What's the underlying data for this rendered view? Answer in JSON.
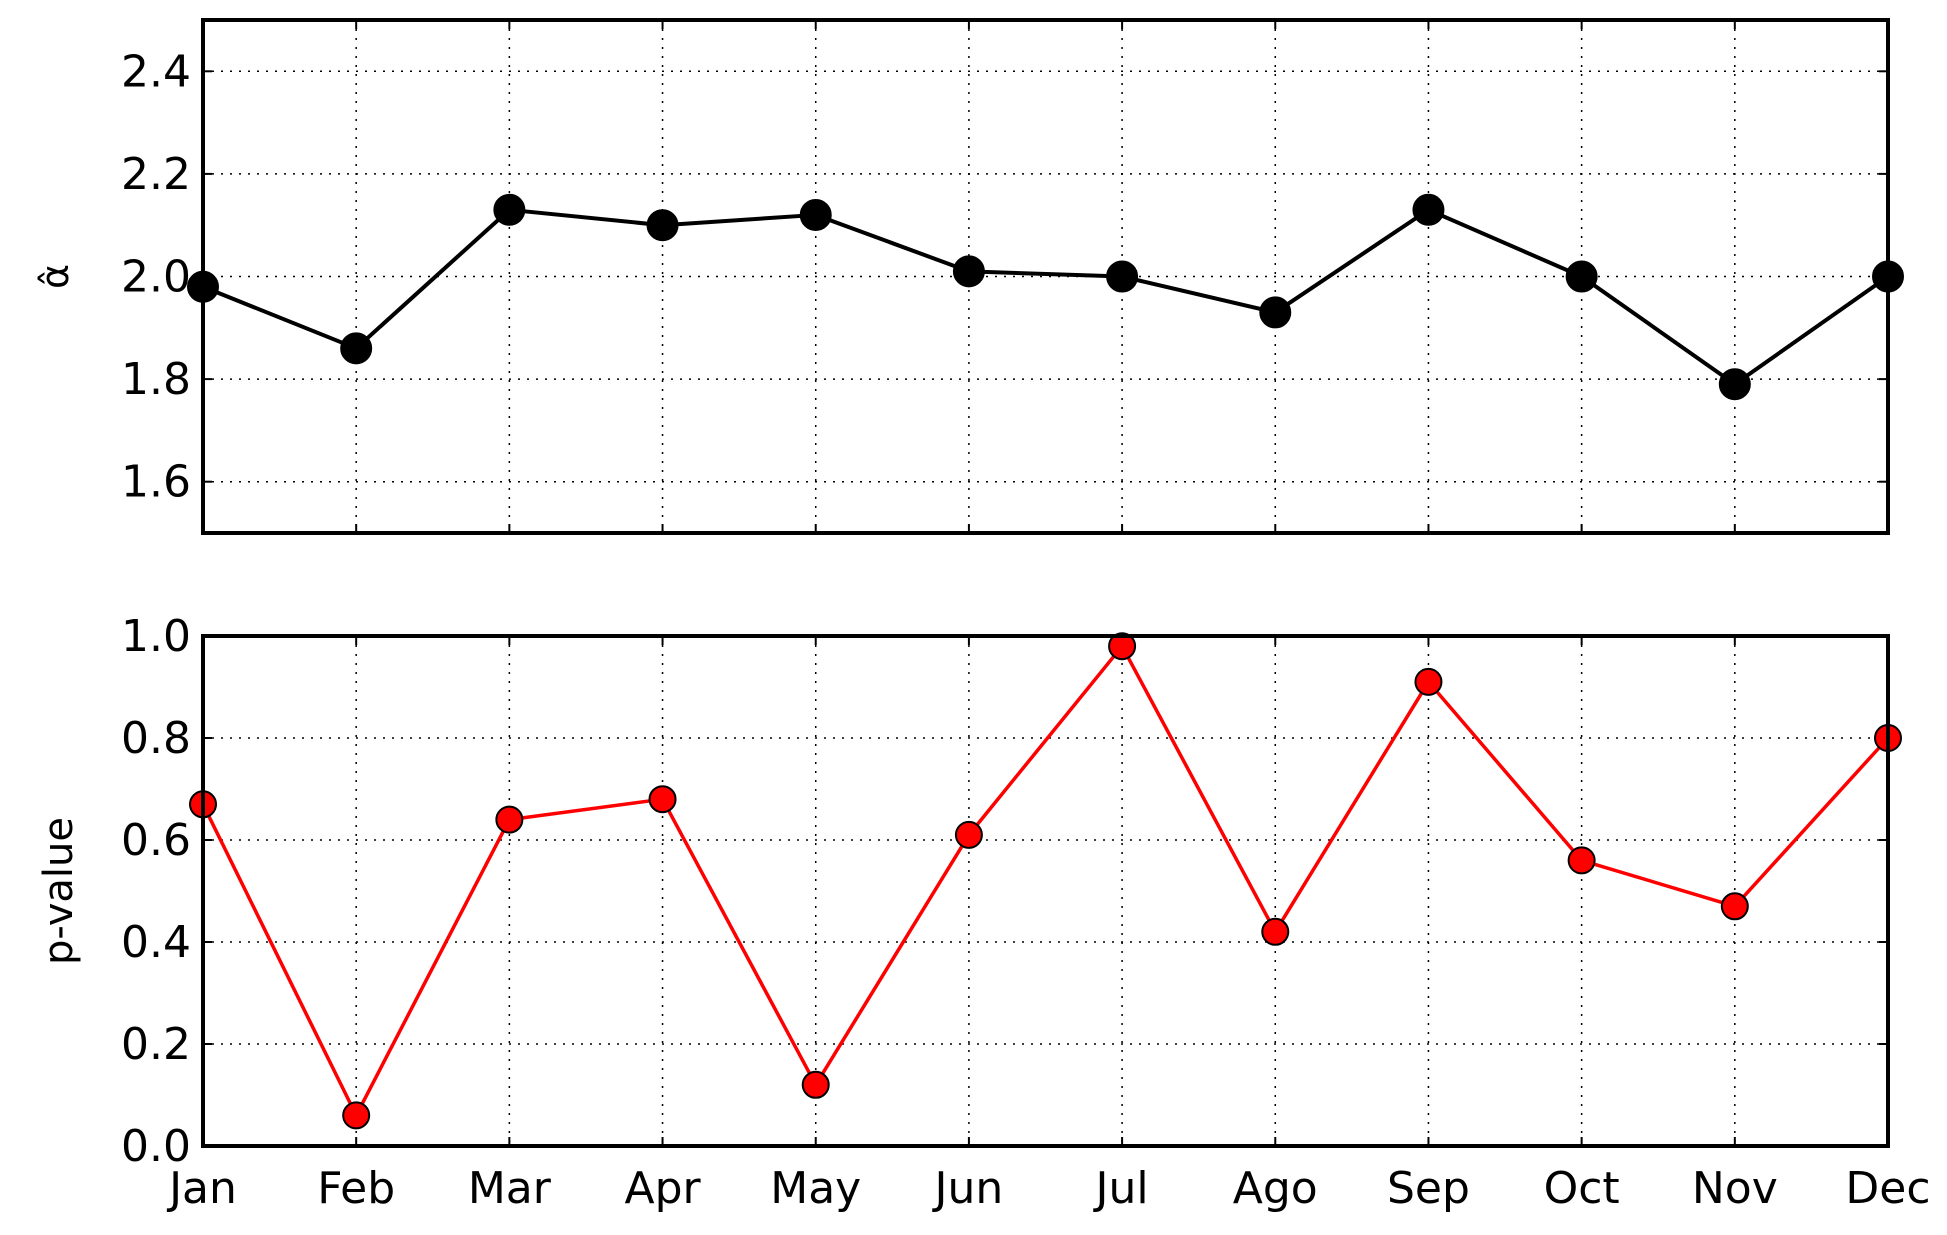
{
  "chart_data": [
    {
      "type": "line",
      "title": "",
      "xlabel": "",
      "ylabel": "α̂",
      "categories": [
        "Jan",
        "Feb",
        "Mar",
        "Apr",
        "May",
        "Jun",
        "Jul",
        "Ago",
        "Sep",
        "Oct",
        "Nov",
        "Dec"
      ],
      "ylim": [
        1.5,
        2.5
      ],
      "yticks": [
        "1.6",
        "1.8",
        "2.0",
        "2.2",
        "2.4"
      ],
      "grid": true,
      "show_xtick_labels": false,
      "series": [
        {
          "values": [
            1.98,
            1.86,
            2.13,
            2.1,
            2.12,
            2.01,
            2.0,
            1.93,
            2.13,
            2.0,
            1.79,
            2.0
          ],
          "color": "#000000"
        }
      ]
    },
    {
      "type": "line",
      "title": "",
      "xlabel": "",
      "ylabel": "p-value",
      "categories": [
        "Jan",
        "Feb",
        "Mar",
        "Apr",
        "May",
        "Jun",
        "Jul",
        "Ago",
        "Sep",
        "Oct",
        "Nov",
        "Dec"
      ],
      "ylim": [
        0.0,
        1.0
      ],
      "yticks": [
        "0.0",
        "0.2",
        "0.4",
        "0.6",
        "0.8",
        "1.0"
      ],
      "grid": true,
      "show_xtick_labels": true,
      "series": [
        {
          "values": [
            0.67,
            0.06,
            0.64,
            0.68,
            0.12,
            0.61,
            0.98,
            0.42,
            0.91,
            0.56,
            0.47,
            0.8
          ],
          "color": "#ff0000"
        }
      ]
    }
  ]
}
